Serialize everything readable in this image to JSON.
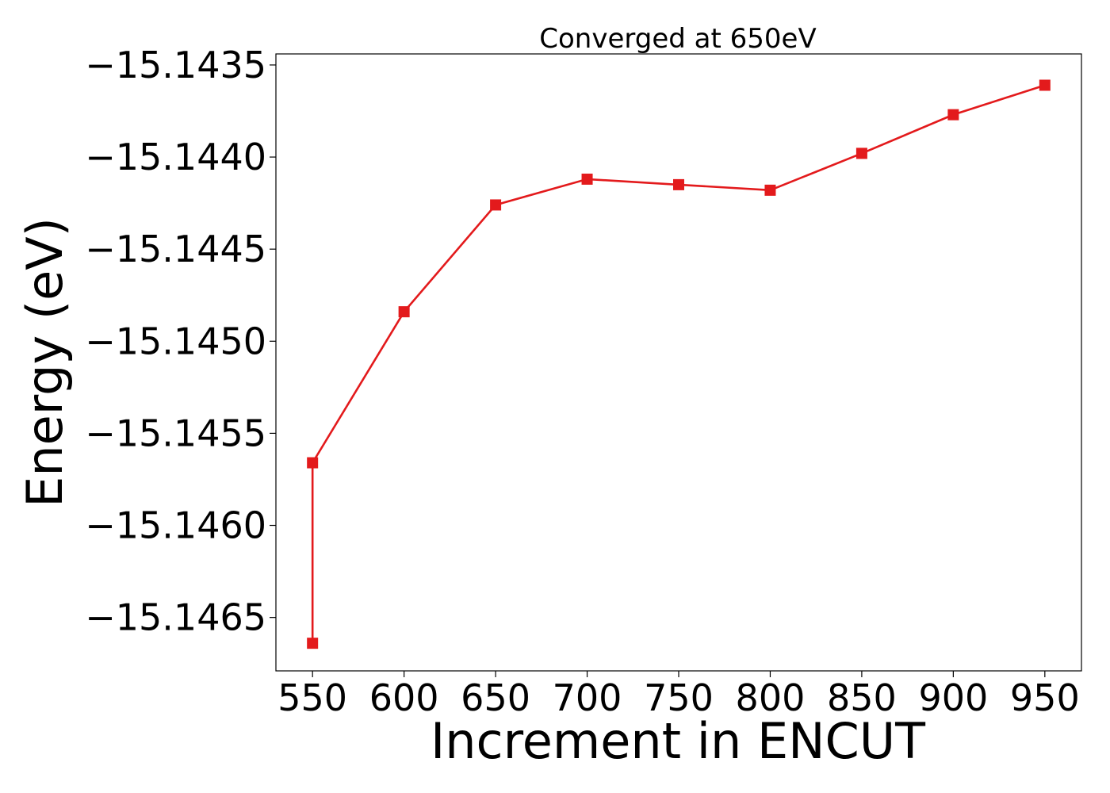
{
  "chart_data": {
    "type": "line",
    "title": "Converged at 650eV",
    "xlabel": "Increment in ENCUT",
    "ylabel": "Energy (eV)",
    "x_ticks": [
      550,
      600,
      650,
      700,
      750,
      800,
      850,
      900,
      950
    ],
    "x_tick_labels": [
      "550",
      "600",
      "650",
      "700",
      "750",
      "800",
      "850",
      "900",
      "950"
    ],
    "y_ticks": [
      -15.1435,
      -15.144,
      -15.1445,
      -15.145,
      -15.1455,
      -15.146,
      -15.1465
    ],
    "y_tick_labels": [
      "−15.1435",
      "−15.1440",
      "−15.1445",
      "−15.1450",
      "−15.1455",
      "−15.1460",
      "−15.1465"
    ],
    "xlim": [
      530,
      970
    ],
    "ylim": [
      -15.14679,
      -15.14344
    ],
    "grid": false,
    "series": [
      {
        "color": "#e31a1c",
        "marker": "square",
        "x": [
          550,
          550,
          600,
          650,
          700,
          750,
          800,
          850,
          900,
          950
        ],
        "y": [
          -15.14664,
          -15.14566,
          -15.14484,
          -15.14426,
          -15.14412,
          -15.14415,
          -15.14418,
          -15.14398,
          -15.14377,
          -15.14361
        ]
      }
    ]
  }
}
